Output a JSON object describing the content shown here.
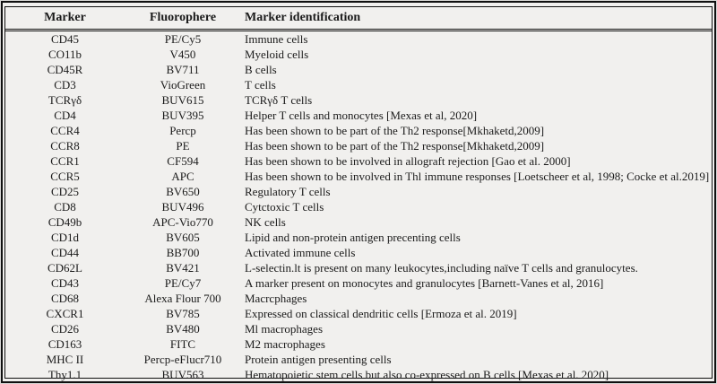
{
  "colors": {
    "background": "#f1f0ee",
    "text": "#1b1b1b",
    "border": "#101010"
  },
  "table": {
    "columns": [
      {
        "label": "Marker",
        "align": "center"
      },
      {
        "label": "Fluorophere",
        "align": "center"
      },
      {
        "label": "Marker identification",
        "align": "left"
      }
    ],
    "rows": [
      [
        "CD45",
        "PE/Cy5",
        "Immune cells"
      ],
      [
        "CO11b",
        "V450",
        "Myeloid cells"
      ],
      [
        "CD45R",
        "BV711",
        "B cells"
      ],
      [
        "CD3",
        "VioGreen",
        "T cells"
      ],
      [
        "TCRγδ",
        "BUV615",
        "TCRγδ T cells"
      ],
      [
        "CD4",
        "BUV395",
        "Helper T cells and monocytes [Mexas et al, 2020]"
      ],
      [
        "CCR4",
        "Percp",
        "Has been shown to be part of the Th2 response[Mkhaketd,2009]"
      ],
      [
        "CCR8",
        "PE",
        "Has been shown to be part of the Th2 response[Mkhaketd,2009]"
      ],
      [
        "CCR1",
        "CF594",
        "Has been shown to be involved in allograft rejection [Gao et al. 2000]"
      ],
      [
        "CCR5",
        "APC",
        "Has been shown to be involved in Thl immune responses [Loetscheer et al, 1998; Cocke et al.2019]"
      ],
      [
        "CD25",
        "BV650",
        "Regulatory T cells"
      ],
      [
        "CD8",
        "BUV496",
        "Cytctoxic T cells"
      ],
      [
        "CD49b",
        "APC-Vio770",
        "NK cells"
      ],
      [
        "CD1d",
        "BV605",
        "Lipid and non-protein antigen precenting cells"
      ],
      [
        "CD44",
        "BB700",
        "Activated immune cells"
      ],
      [
        "CD62L",
        "BV421",
        "L-selectin.lt is present on many leukocytes,including naïve T cells and granulocytes."
      ],
      [
        "CD43",
        "PE/Cy7",
        "A marker present on monocytes and granulocytes [Barnett-Vanes et al, 2016]"
      ],
      [
        "CD68",
        "Alexa Flour 700",
        "Macrcphages"
      ],
      [
        "CXCR1",
        "BV785",
        "Expressed on classical dendritic cells [Ermoza et al. 2019]"
      ],
      [
        "CD26",
        "BV480",
        "Ml macrophages"
      ],
      [
        "CD163",
        "FITC",
        "M2 macrophages"
      ],
      [
        "MHC II",
        "Percp-eFlucr710",
        "Protein antigen presenting cells"
      ],
      [
        "Thy1.1",
        "BUV563",
        "Hematopoietic stem cells but also co-expressed on B cells [Mexas et al. 2020]"
      ]
    ]
  }
}
